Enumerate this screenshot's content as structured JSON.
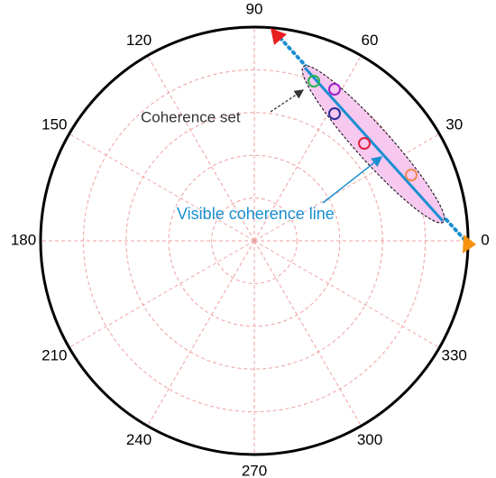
{
  "angle_labels": [
    0,
    30,
    60,
    90,
    120,
    150,
    180,
    210,
    240,
    270,
    300,
    330
  ],
  "annotations": {
    "coherence_set": "Coherence set",
    "visible_coherence_line": "Visible coherence line"
  }
}
